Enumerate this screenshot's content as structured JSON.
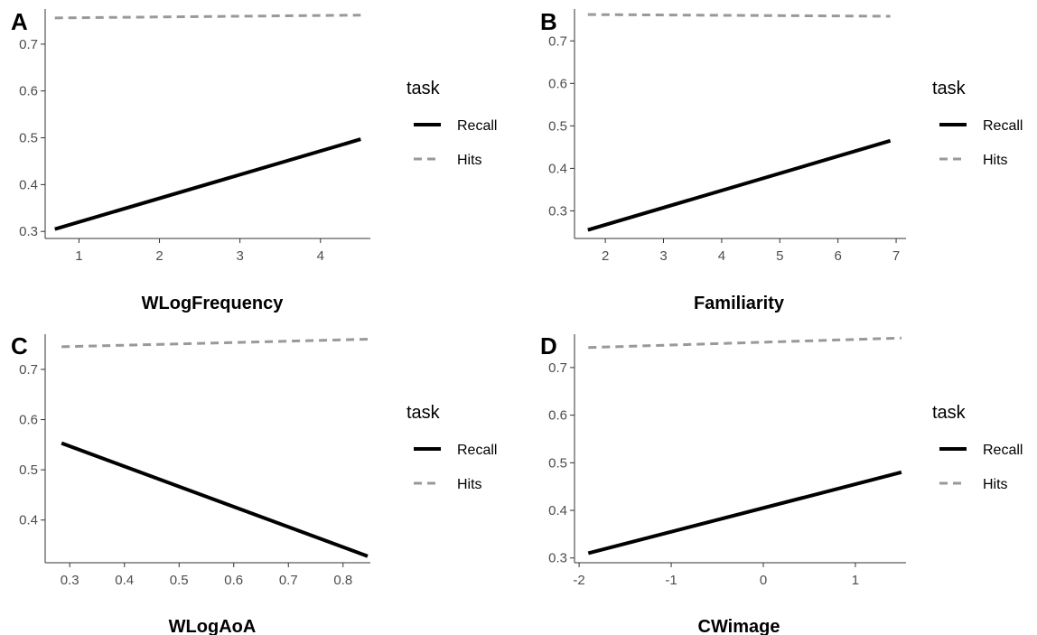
{
  "chart_data": [
    {
      "panel": "A",
      "type": "line",
      "xlabel": "WLogFrequency",
      "ylabel": "",
      "x": [
        0.7,
        4.5
      ],
      "xticks": [
        1,
        2,
        3,
        4
      ],
      "xtick_labels": [
        "1",
        "2",
        "3",
        "4"
      ],
      "yticks": [
        0.3,
        0.4,
        0.5,
        0.6,
        0.7
      ],
      "ytick_labels": [
        "0.3",
        "0.4",
        "0.5",
        "0.6",
        "0.7"
      ],
      "xlim": [
        0.58,
        4.62
      ],
      "ylim": [
        0.285,
        0.775
      ],
      "series": [
        {
          "name": "Recall",
          "values": [
            0.305,
            0.497
          ]
        },
        {
          "name": "Hits",
          "values": [
            0.756,
            0.762
          ]
        }
      ],
      "legend": {
        "title": "task",
        "position": "right"
      },
      "grid": false
    },
    {
      "panel": "B",
      "type": "line",
      "xlabel": "Familiarity",
      "ylabel": "",
      "x": [
        1.7,
        6.9
      ],
      "xticks": [
        2,
        3,
        4,
        5,
        6,
        7
      ],
      "xtick_labels": [
        "2",
        "3",
        "4",
        "5",
        "6",
        "7"
      ],
      "yticks": [
        0.3,
        0.4,
        0.5,
        0.6,
        0.7
      ],
      "ytick_labels": [
        "0.3",
        "0.4",
        "0.5",
        "0.6",
        "0.7"
      ],
      "xlim": [
        1.47,
        7.17
      ],
      "ylim": [
        0.235,
        0.775
      ],
      "series": [
        {
          "name": "Recall",
          "values": [
            0.255,
            0.465
          ]
        },
        {
          "name": "Hits",
          "values": [
            0.762,
            0.758
          ]
        }
      ],
      "legend": {
        "title": "task",
        "position": "right"
      },
      "grid": false
    },
    {
      "panel": "C",
      "type": "line",
      "xlabel": "WLogAoA",
      "ylabel": "",
      "x": [
        0.285,
        0.845
      ],
      "xticks": [
        0.3,
        0.4,
        0.5,
        0.6,
        0.7,
        0.8
      ],
      "xtick_labels": [
        "0.3",
        "0.4",
        "0.5",
        "0.6",
        "0.7",
        "0.8"
      ],
      "yticks": [
        0.4,
        0.5,
        0.6,
        0.7
      ],
      "ytick_labels": [
        "0.4",
        "0.5",
        "0.6",
        "0.7"
      ],
      "xlim": [
        0.255,
        0.85
      ],
      "ylim": [
        0.315,
        0.77
      ],
      "series": [
        {
          "name": "Recall",
          "values": [
            0.553,
            0.328
          ]
        },
        {
          "name": "Hits",
          "values": [
            0.745,
            0.76
          ]
        }
      ],
      "legend": {
        "title": "task",
        "position": "right"
      },
      "grid": false
    },
    {
      "panel": "D",
      "type": "line",
      "xlabel": "CWimage",
      "ylabel": "",
      "x": [
        -1.9,
        1.5
      ],
      "xticks": [
        -2,
        -1,
        0,
        1
      ],
      "xtick_labels": [
        "-2",
        "-1",
        "0",
        "1"
      ],
      "yticks": [
        0.3,
        0.4,
        0.5,
        0.6,
        0.7
      ],
      "ytick_labels": [
        "0.3",
        "0.4",
        "0.5",
        "0.6",
        "0.7"
      ],
      "xlim": [
        -2.05,
        1.55
      ],
      "ylim": [
        0.29,
        0.77
      ],
      "series": [
        {
          "name": "Recall",
          "values": [
            0.31,
            0.48
          ]
        },
        {
          "name": "Hits",
          "values": [
            0.742,
            0.762
          ]
        }
      ],
      "legend": {
        "title": "task",
        "position": "right"
      },
      "grid": false
    }
  ],
  "styles": {
    "recall_color": "#000000",
    "hits_color": "#999999",
    "axis_color": "#333333",
    "tick_label_color": "#4d4d4d"
  }
}
